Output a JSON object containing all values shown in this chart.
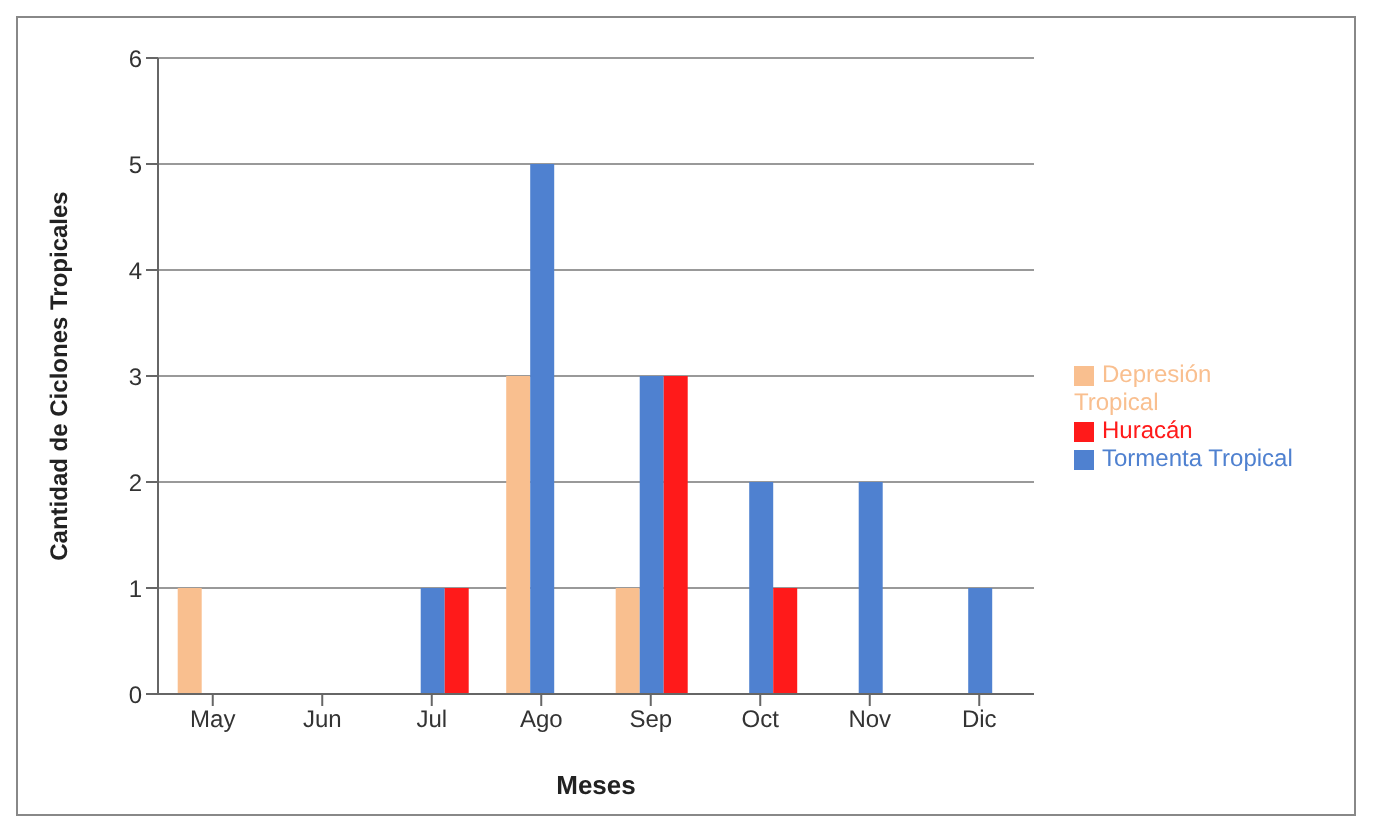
{
  "chart_data": {
    "type": "bar",
    "xlabel": "Meses",
    "ylabel": "Cantidad de Ciclones Tropicales",
    "categories": [
      "May",
      "Jun",
      "Jul",
      "Ago",
      "Sep",
      "Oct",
      "Nov",
      "Dic"
    ],
    "series": [
      {
        "name": "Depresión Tropical",
        "color": "#f9bf8f",
        "values": [
          1,
          0,
          0,
          3,
          1,
          0,
          0,
          0
        ]
      },
      {
        "name": "Tormenta Tropical",
        "color": "#4f81d0",
        "values": [
          0,
          0,
          1,
          5,
          3,
          2,
          2,
          1
        ]
      },
      {
        "name": "Huracán",
        "color": "#ff1a1a",
        "values": [
          0,
          0,
          1,
          0,
          3,
          1,
          0,
          0
        ]
      }
    ],
    "ylim": [
      0,
      6
    ],
    "yticks": [
      0,
      1,
      2,
      3,
      4,
      5,
      6
    ],
    "grid": "y",
    "legend": "right"
  }
}
